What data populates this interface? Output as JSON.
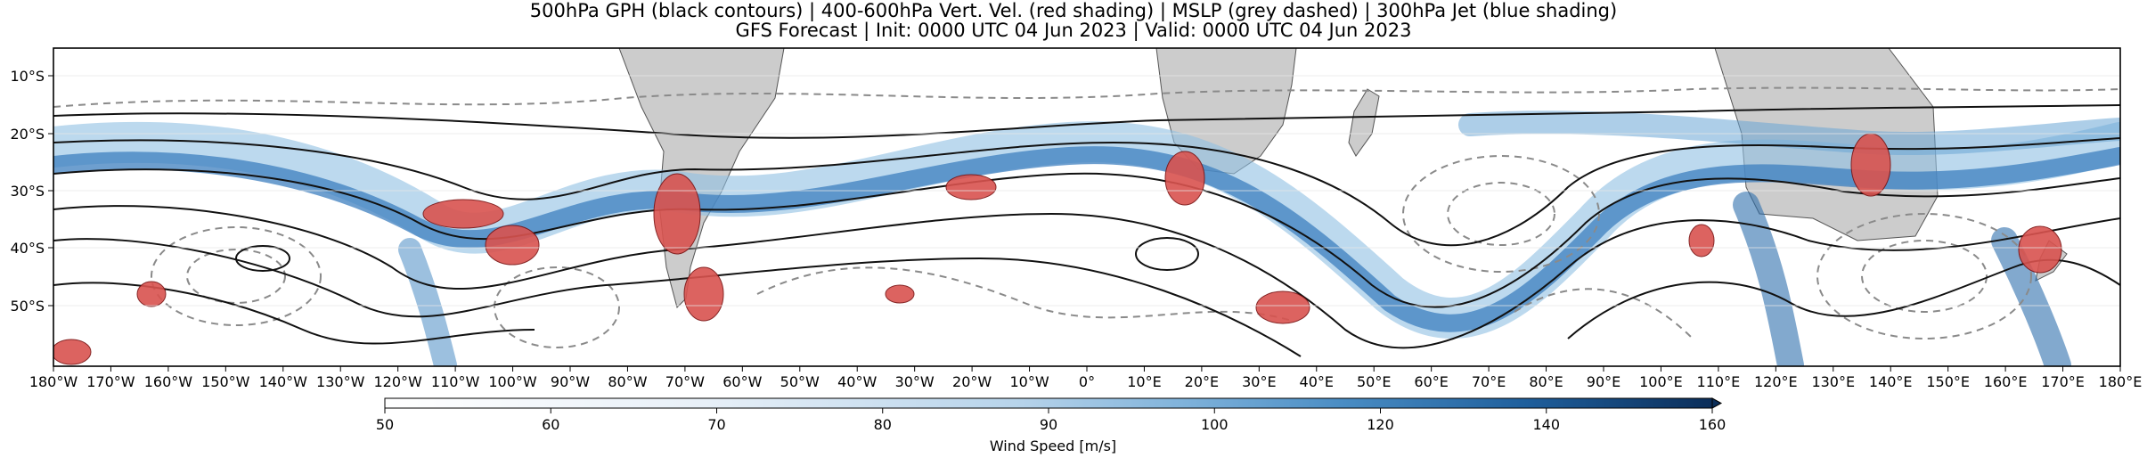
{
  "header": {
    "title_line1": "500hPa GPH (black contours) | 400-600hPa Vert. Vel. (red shading) | MSLP (grey dashed) | 300hPa Jet (blue shading)",
    "title_line2": "GFS Forecast | Init: 0000 UTC 04 Jun 2023 | Valid: 0000 UTC 04 Jun 2023"
  },
  "map": {
    "lon_ticks": [
      "180°W",
      "170°W",
      "160°W",
      "150°W",
      "140°W",
      "130°W",
      "120°W",
      "110°W",
      "100°W",
      "90°W",
      "80°W",
      "70°W",
      "60°W",
      "50°W",
      "40°W",
      "30°W",
      "20°W",
      "10°W",
      "0°",
      "10°E",
      "20°E",
      "30°E",
      "40°E",
      "50°E",
      "60°E",
      "70°E",
      "80°E",
      "90°E",
      "100°E",
      "110°E",
      "120°E",
      "130°E",
      "140°E",
      "150°E",
      "160°E",
      "170°E",
      "180°E"
    ],
    "lat_ticks": [
      "10°S",
      "20°S",
      "30°S",
      "40°S",
      "50°S"
    ],
    "colors": {
      "land": "#cccccc",
      "gph_contour": "#111111",
      "mslp_contour": "#8a8a8a",
      "vert_vel": "#c0392b",
      "jet": "#3d7fbf"
    }
  },
  "colorbar": {
    "label": "Wind Speed [m/s]",
    "tick_labels": [
      "50",
      "60",
      "70",
      "80",
      "90",
      "100",
      "120",
      "140",
      "160"
    ]
  }
}
